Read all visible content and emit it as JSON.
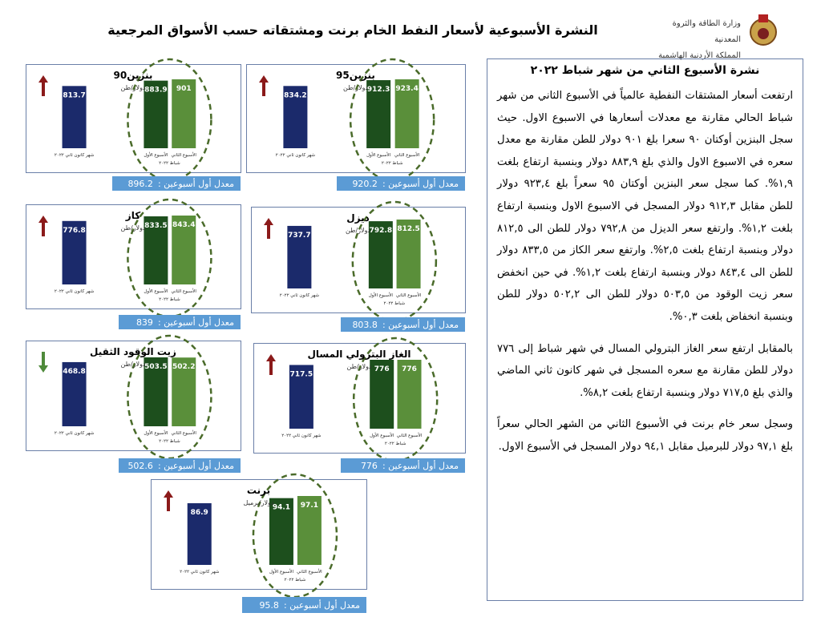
{
  "header": {
    "title": "النشرة الأسبوعية لأسعار النفط الخام برنت ومشتقاته حسب الأسواق المرجعية",
    "ministry": "وزارة الطاقة والثروة المعدنية",
    "kingdom": "المملكة الأردنية الهاشمية"
  },
  "bulletin": {
    "title": "نشرة الأسبوع الثاني من شهر شباط ٢٠٢٢",
    "paragraphs": [
      "ارتفعت أسعار المشتقات النفطية عالمياً في الأسبوع الثاني من شهر شباط الحالي مقارنة مع معدلات أسعارها في الاسبوع الاول. حيث سجل البنزين أوكتان ٩٠ سعرا بلغ ٩٠١ دولار للطن مقارنة مع معدل سعره في الاسبوع الاول والذي بلغ ٨٨٣,٩ دولار وبنسبة ارتفاع بلغت ١,٩%. كما سجل سعر البنزين أوكتان ٩٥ سعراً بلغ ٩٢٣,٤ دولار للطن مقابل ٩١٢,٣ دولار المسجل في الاسبوع الاول وبنسبة ارتفاع بلغت ١,٢%. وارتفع سعر الديزل من ٧٩٢,٨ دولار للطن الى ٨١٢,٥ دولار وبنسبة ارتفاع بلغت ٢,٥%. وارتفع سعر الكاز من ٨٣٣,٥ دولار للطن الى ٨٤٣,٤ دولار وبنسبة ارتفاع بلغت ١,٢%. في حين انخفض سعر زيت الوقود من ٥٠٣,٥ دولار للطن الى ٥٠٢,٢ دولار للطن وبنسبة انخفاض بلغت ٠,٣%.",
      "بالمقابل ارتفع سعر الغاز البترولي المسال في شهر شباط إلى ٧٧٦ دولار للطن مقارنة مع سعره المسجل في شهر كانون ثاني الماضي والذي بلغ ٧١٧,٥ دولار وبنسبة ارتفاع بلغت ٨,٢%.",
      "وسجل سعر خام برنت في الأسبوع الثاني من الشهر الحالي سعراً بلغ ٩٧,١ دولار للبرميل مقابل ٩٤,١ دولار المسجل في الأسبوع الاول."
    ]
  },
  "chart_data": [
    {
      "type": "bar",
      "title": "بنزين90",
      "unit": "دولار/طن",
      "categories": [
        "شهر كانون ثاني ٢٠٢٢",
        "الأسبوع الأول",
        "الأسبوع الثاني"
      ],
      "period": "شباط ٢٠٢٢",
      "values": [
        813.7,
        883.9,
        901
      ],
      "colors": [
        "#1b2a6b",
        "#1d4f1d",
        "#5a8f3a"
      ],
      "trend": "up",
      "avg_label": "معدل أول أسبوعين :",
      "avg": 896.2
    },
    {
      "type": "bar",
      "title": "بنزين95",
      "unit": "دولار/طن",
      "categories": [
        "شهر كانون ثاني ٢٠٢٢",
        "الأسبوع الأول",
        "الأسبوع الثاني"
      ],
      "period": "شباط ٢٠٢٢",
      "values": [
        834.2,
        912.3,
        923.4
      ],
      "colors": [
        "#1b2a6b",
        "#1d4f1d",
        "#5a8f3a"
      ],
      "trend": "up",
      "avg_label": "معدل أول أسبوعين :",
      "avg": 920.2
    },
    {
      "type": "bar",
      "title": "كاز",
      "unit": "دولار/طن",
      "categories": [
        "شهر كانون ثاني ٢٠٢٢",
        "الأسبوع الأول",
        "الأسبوع الثاني"
      ],
      "period": "شباط ٢٠٢٢",
      "values": [
        776.8,
        833.5,
        843.4
      ],
      "colors": [
        "#1b2a6b",
        "#1d4f1d",
        "#5a8f3a"
      ],
      "trend": "up",
      "avg_label": "معدل أول أسبوعين :",
      "avg": 839
    },
    {
      "type": "bar",
      "title": "ديزل",
      "unit": "دولار/طن",
      "categories": [
        "شهر كانون ثاني ٢٠٢٢",
        "الأسبوع الأول",
        "الأسبوع الثاني"
      ],
      "period": "شباط ٢٠٢٢",
      "values": [
        737.7,
        792.8,
        812.5
      ],
      "colors": [
        "#1b2a6b",
        "#1d4f1d",
        "#5a8f3a"
      ],
      "trend": "up",
      "avg_label": "معدل أول أسبوعين :",
      "avg": 803.8
    },
    {
      "type": "bar",
      "title": "زيت الوقود الثقيل",
      "unit": "دولار/طن",
      "categories": [
        "شهر كانون ثاني ٢٠٢٢",
        "الأسبوع الأول",
        "الأسبوع الثاني"
      ],
      "period": "شباط ٢٠٢٢",
      "values": [
        468.8,
        503.5,
        502.2
      ],
      "colors": [
        "#1b2a6b",
        "#1d4f1d",
        "#5a8f3a"
      ],
      "trend": "down",
      "avg_label": "معدل أول أسبوعين :",
      "avg": 502.6
    },
    {
      "type": "bar",
      "title": "الغاز البترولي المسال",
      "unit": "دولار/طن",
      "categories": [
        "شهر كانون ثاني ٢٠٢٢",
        "الأسبوع الأول",
        "الأسبوع الثاني"
      ],
      "period": "شباط ٢٠٢٢",
      "values": [
        717.5,
        776,
        776
      ],
      "colors": [
        "#1b2a6b",
        "#1d4f1d",
        "#5a8f3a"
      ],
      "trend": "up",
      "avg_label": "معدل أول أسبوعين :",
      "avg": 776
    },
    {
      "type": "bar",
      "title": "برنت",
      "unit": "دولار/برميل",
      "categories": [
        "شهر كانون ثاني ٢٠٢٢",
        "الأسبوع الأول",
        "الأسبوع الثاني"
      ],
      "period": "شباط ٢٠٢٢",
      "values": [
        86.9,
        94.1,
        97.1
      ],
      "colors": [
        "#1b2a6b",
        "#1d4f1d",
        "#5a8f3a"
      ],
      "trend": "up",
      "avg_label": "معدل أول أسبوعين :",
      "avg": 95.8
    }
  ]
}
